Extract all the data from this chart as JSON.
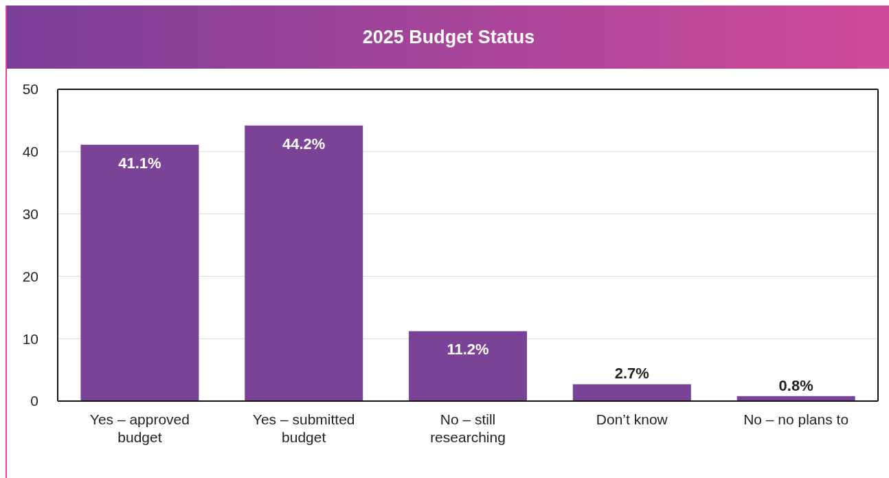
{
  "chart_data": {
    "type": "bar",
    "title": "2025 Budget Status",
    "categories": [
      "Yes – approved budget",
      "Yes – submitted budget",
      "No – still researching",
      "Don’t know",
      "No – no plans to"
    ],
    "values": [
      41.1,
      44.2,
      11.2,
      2.7,
      0.8
    ],
    "color": "#7b4397",
    "value_labels": [
      "41.1%",
      "44.2%",
      "11.2%",
      "2.7%",
      "0.8%"
    ],
    "ylim": [
      0,
      50
    ],
    "yticks": [
      0,
      10,
      20,
      30,
      40,
      50
    ],
    "grid": "y"
  }
}
